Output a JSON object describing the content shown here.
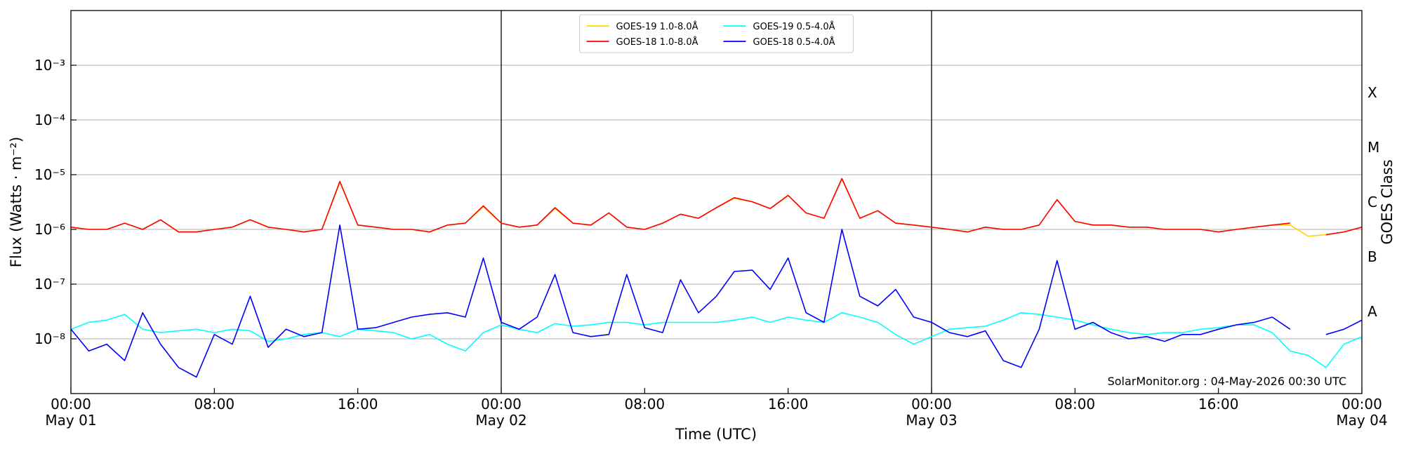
{
  "chart_data": {
    "type": "line",
    "xlabel": "Time (UTC)",
    "ylabel": "Flux (Watts · m⁻²)",
    "y2label": "GOES Class",
    "annotation": "SolarMonitor.org : 04-May-2026 00:30 UTC",
    "log_y": true,
    "grid": true,
    "legend": "upper center",
    "legend_columns": 2,
    "xlim": [
      0,
      72
    ],
    "xticks": [
      {
        "value": 0,
        "label": "00:00\nMay 01"
      },
      {
        "value": 8,
        "label": "08:00"
      },
      {
        "value": 16,
        "label": "16:00"
      },
      {
        "value": 24,
        "label": "00:00\nMay 02"
      },
      {
        "value": 32,
        "label": "08:00"
      },
      {
        "value": 40,
        "label": "16:00"
      },
      {
        "value": 48,
        "label": "00:00\nMay 03"
      },
      {
        "value": 56,
        "label": "08:00"
      },
      {
        "value": 64,
        "label": "16:00"
      },
      {
        "value": 72,
        "label": "00:00\nMay 04"
      }
    ],
    "vlines": [
      24,
      48
    ],
    "ylim": [
      1e-09,
      0.01
    ],
    "yticks": [
      {
        "value": 1e-08,
        "label": "10⁻⁸"
      },
      {
        "value": 1e-07,
        "label": "10⁻⁷"
      },
      {
        "value": 1e-06,
        "label": "10⁻⁶"
      },
      {
        "value": 1e-05,
        "label": "10⁻⁵"
      },
      {
        "value": 0.0001,
        "label": "10⁻⁴"
      },
      {
        "value": 0.001,
        "label": "10⁻³"
      }
    ],
    "y2lim": [
      1e-09,
      0.01
    ],
    "y2ticks": [
      {
        "value": 3.16e-08,
        "label": "A"
      },
      {
        "value": 3.16e-07,
        "label": "B"
      },
      {
        "value": 3.16e-06,
        "label": "C"
      },
      {
        "value": 3.16e-05,
        "label": "M"
      },
      {
        "value": 0.000316,
        "label": "X"
      }
    ],
    "x": [
      0,
      1,
      2,
      3,
      4,
      5,
      6,
      7,
      8,
      9,
      10,
      11,
      12,
      13,
      14,
      15,
      16,
      17,
      18,
      19,
      20,
      21,
      22,
      23,
      24,
      25,
      26,
      27,
      28,
      29,
      30,
      31,
      32,
      33,
      34,
      35,
      36,
      37,
      38,
      39,
      40,
      41,
      42,
      43,
      44,
      45,
      46,
      47,
      48,
      49,
      50,
      51,
      52,
      53,
      54,
      55,
      56,
      57,
      58,
      59,
      60,
      61,
      62,
      63,
      64,
      65,
      66,
      67,
      68,
      69,
      70,
      71,
      72
    ],
    "series": [
      {
        "name": "GOES-19 1.0-8.0Å",
        "color": "#ffd700",
        "values": [
          1.1e-06,
          1e-06,
          1e-06,
          1.3e-06,
          1e-06,
          1.5e-06,
          9e-07,
          9e-07,
          1e-06,
          1.1e-06,
          1.5e-06,
          1.1e-06,
          1e-06,
          9e-07,
          1e-06,
          7.3e-06,
          1.2e-06,
          1.1e-06,
          1e-06,
          1e-06,
          9e-07,
          1.2e-06,
          1.3e-06,
          2.6e-06,
          1.3e-06,
          1.1e-06,
          1.2e-06,
          2.4e-06,
          1.3e-06,
          1.2e-06,
          2e-06,
          1.1e-06,
          1e-06,
          1.3e-06,
          1.9e-06,
          1.6e-06,
          2.5e-06,
          3.7e-06,
          3.2e-06,
          2.4e-06,
          4.1e-06,
          2e-06,
          1.6e-06,
          8.3e-06,
          1.6e-06,
          2.2e-06,
          1.3e-06,
          1.2e-06,
          1.1e-06,
          1e-06,
          9e-07,
          1.1e-06,
          1e-06,
          1e-06,
          1.2e-06,
          3.5e-06,
          1.4e-06,
          1.2e-06,
          1.2e-06,
          1.1e-06,
          1.1e-06,
          1e-06,
          1e-06,
          1e-06,
          9e-07,
          1e-06,
          1.1e-06,
          1.2e-06,
          1.2e-06,
          7.5e-07,
          8e-07,
          9e-07,
          1.1e-06
        ]
      },
      {
        "name": "GOES-18 1.0-8.0Å",
        "color": "#ff0000",
        "values": [
          1.1e-06,
          1e-06,
          1e-06,
          1.3e-06,
          1e-06,
          1.5e-06,
          9e-07,
          9e-07,
          1e-06,
          1.1e-06,
          1.5e-06,
          1.1e-06,
          1e-06,
          9e-07,
          1e-06,
          7.5e-06,
          1.2e-06,
          1.1e-06,
          1e-06,
          1e-06,
          9e-07,
          1.2e-06,
          1.3e-06,
          2.7e-06,
          1.3e-06,
          1.1e-06,
          1.2e-06,
          2.5e-06,
          1.3e-06,
          1.2e-06,
          2e-06,
          1.1e-06,
          1e-06,
          1.3e-06,
          1.9e-06,
          1.6e-06,
          2.5e-06,
          3.8e-06,
          3.2e-06,
          2.4e-06,
          4.2e-06,
          2e-06,
          1.6e-06,
          8.5e-06,
          1.6e-06,
          2.2e-06,
          1.3e-06,
          1.2e-06,
          1.1e-06,
          1e-06,
          9e-07,
          1.1e-06,
          1e-06,
          1e-06,
          1.2e-06,
          3.5e-06,
          1.4e-06,
          1.2e-06,
          1.2e-06,
          1.1e-06,
          1.1e-06,
          1e-06,
          1e-06,
          1e-06,
          9e-07,
          1e-06,
          1.1e-06,
          1.2e-06,
          1.3e-06,
          null,
          8e-07,
          9e-07,
          1.1e-06
        ]
      },
      {
        "name": "GOES-19 0.5-4.0Å",
        "color": "#00ffff",
        "values": [
          1.5e-08,
          2e-08,
          2.2e-08,
          2.8e-08,
          1.5e-08,
          1.3e-08,
          1.4e-08,
          1.5e-08,
          1.3e-08,
          1.5e-08,
          1.4e-08,
          9e-09,
          1e-08,
          1.2e-08,
          1.3e-08,
          1.1e-08,
          1.5e-08,
          1.4e-08,
          1.3e-08,
          1e-08,
          1.2e-08,
          8e-09,
          6e-09,
          1.3e-08,
          1.8e-08,
          1.5e-08,
          1.3e-08,
          1.9e-08,
          1.7e-08,
          1.8e-08,
          2e-08,
          2e-08,
          1.8e-08,
          2e-08,
          2e-08,
          2e-08,
          2e-08,
          2.2e-08,
          2.5e-08,
          2e-08,
          2.5e-08,
          2.2e-08,
          2e-08,
          3e-08,
          2.5e-08,
          2e-08,
          1.2e-08,
          8e-09,
          1.1e-08,
          1.5e-08,
          1.6e-08,
          1.7e-08,
          2.2e-08,
          3e-08,
          2.8e-08,
          2.5e-08,
          2.2e-08,
          1.8e-08,
          1.5e-08,
          1.3e-08,
          1.2e-08,
          1.3e-08,
          1.3e-08,
          1.5e-08,
          1.6e-08,
          1.8e-08,
          1.8e-08,
          1.3e-08,
          6e-09,
          5e-09,
          3e-09,
          8e-09,
          1.1e-08
        ]
      },
      {
        "name": "GOES-18 0.5-4.0Å",
        "color": "#0000ff",
        "values": [
          1.5e-08,
          6e-09,
          8e-09,
          4e-09,
          3e-08,
          8e-09,
          3e-09,
          2e-09,
          1.2e-08,
          8e-09,
          6e-08,
          7e-09,
          1.5e-08,
          1.1e-08,
          1.3e-08,
          1.2e-06,
          1.5e-08,
          1.6e-08,
          2e-08,
          2.5e-08,
          2.8e-08,
          3e-08,
          2.5e-08,
          3e-07,
          2e-08,
          1.5e-08,
          2.5e-08,
          1.5e-07,
          1.3e-08,
          1.1e-08,
          1.2e-08,
          1.5e-07,
          1.6e-08,
          1.3e-08,
          1.2e-07,
          3e-08,
          6e-08,
          1.7e-07,
          1.8e-07,
          8e-08,
          3e-07,
          3e-08,
          2e-08,
          1e-06,
          6e-08,
          4e-08,
          8e-08,
          2.5e-08,
          2e-08,
          1.3e-08,
          1.1e-08,
          1.4e-08,
          4e-09,
          3e-09,
          1.5e-08,
          2.7e-07,
          1.5e-08,
          2e-08,
          1.3e-08,
          1e-08,
          1.1e-08,
          9e-09,
          1.2e-08,
          1.2e-08,
          1.5e-08,
          1.8e-08,
          2e-08,
          2.5e-08,
          1.5e-08,
          null,
          1.2e-08,
          1.5e-08,
          2.2e-08
        ]
      }
    ]
  }
}
